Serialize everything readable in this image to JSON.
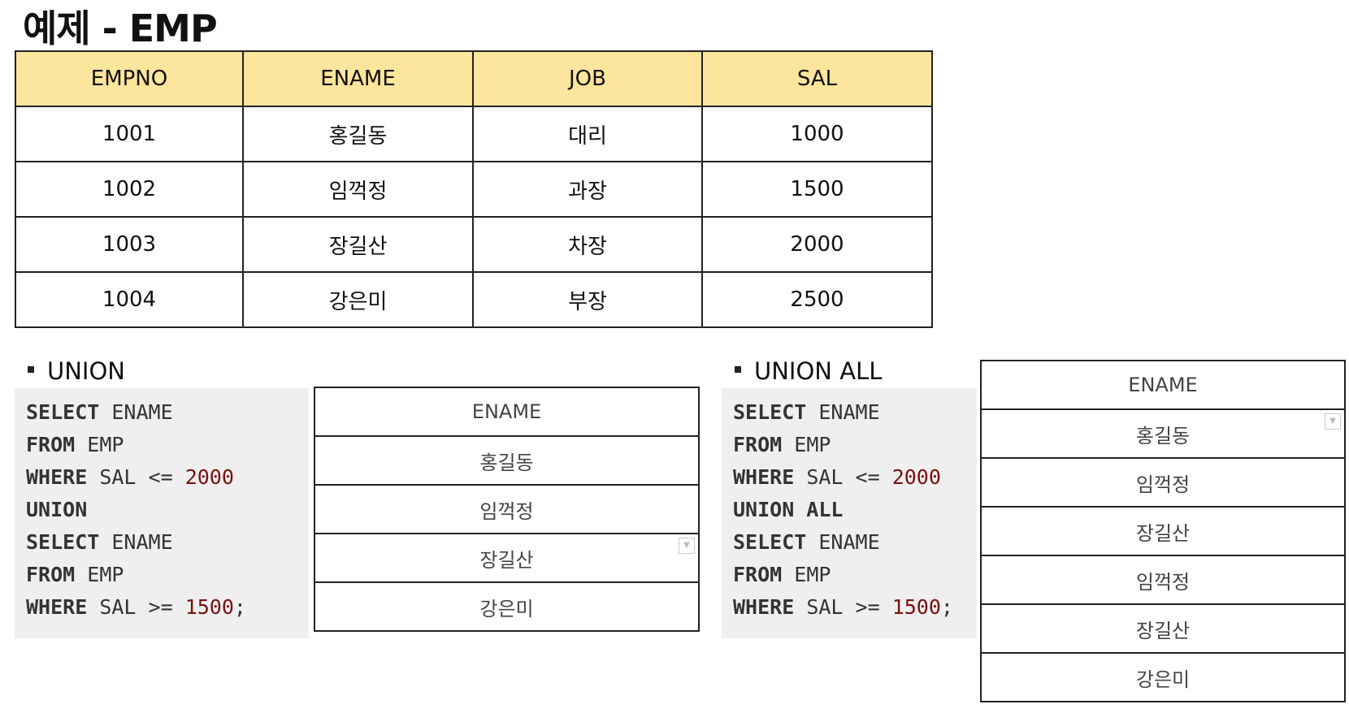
{
  "title": "예제 - EMP",
  "emp_table": {
    "headers": [
      "EMPNO",
      "ENAME",
      "JOB",
      "SAL"
    ],
    "rows": [
      [
        "1001",
        "홍길동",
        "대리",
        "1000"
      ],
      [
        "1002",
        "임꺽정",
        "과장",
        "1500"
      ],
      [
        "1003",
        "장길산",
        "차장",
        "2000"
      ],
      [
        "1004",
        "강은미",
        "부장",
        "2500"
      ]
    ]
  },
  "union": {
    "label": "UNION",
    "code": {
      "line1_kw": "SELECT",
      "line1_rest": " ENAME",
      "line2_kw": "FROM",
      "line2_rest": " EMP",
      "line3_kw": "WHERE",
      "line3_mid": " SAL <= ",
      "line3_num": "2000",
      "line4_kw": "UNION",
      "line5_kw": "SELECT",
      "line5_rest": " ENAME",
      "line6_kw": "FROM",
      "line6_rest": " EMP",
      "line7_kw": "WHERE",
      "line7_mid": " SAL >= ",
      "line7_num": "1500",
      "line7_end": ";"
    },
    "result_header": "ENAME",
    "result_rows": [
      "홍길동",
      "임꺽정",
      "장길산",
      "강은미"
    ]
  },
  "union_all": {
    "label": "UNION ALL",
    "code": {
      "line1_kw": "SELECT",
      "line1_rest": " ENAME",
      "line2_kw": "FROM",
      "line2_rest": " EMP",
      "line3_kw": "WHERE",
      "line3_mid": " SAL <= ",
      "line3_num": "2000",
      "line4_kw": "UNION ALL",
      "line5_kw": "SELECT",
      "line5_rest": " ENAME",
      "line6_kw": "FROM",
      "line6_rest": " EMP",
      "line7_kw": "WHERE",
      "line7_mid": " SAL >= ",
      "line7_num": "1500",
      "line7_end": ";"
    },
    "result_header": "ENAME",
    "result_rows": [
      "홍길동",
      "임꺽정",
      "장길산",
      "임꺽정",
      "장길산",
      "강은미"
    ]
  },
  "icons": {
    "dropdown": "chevron-down-icon"
  }
}
